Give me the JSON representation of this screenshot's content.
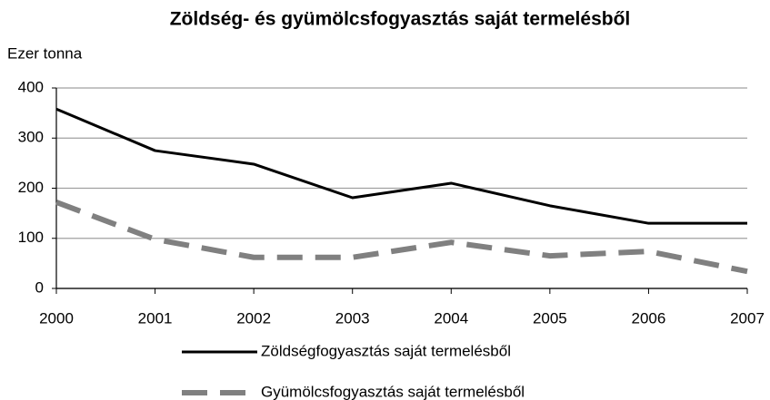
{
  "chart_data": {
    "type": "line",
    "title": "Zöldség- és gyümölcsfogyasztás saját termelésből",
    "y_label": "Ezer tonna",
    "categories": [
      "2000",
      "2001",
      "2002",
      "2003",
      "2004",
      "2005",
      "2006",
      "2007"
    ],
    "series": [
      {
        "name": "Zöldségfogyasztás saját termelésből",
        "color": "#000000",
        "line_style": "solid",
        "values": [
          358,
          275,
          248,
          181,
          210,
          165,
          130,
          130
        ]
      },
      {
        "name": "Gyümölcsfogyasztás saját termelésből",
        "color": "#808080",
        "line_style": "dashed",
        "values": [
          172,
          98,
          62,
          62,
          92,
          65,
          74,
          34
        ]
      }
    ],
    "ylim": [
      0,
      400
    ],
    "yticks": [
      0,
      100,
      200,
      300,
      400
    ],
    "grid": true,
    "legend": "bottom"
  }
}
